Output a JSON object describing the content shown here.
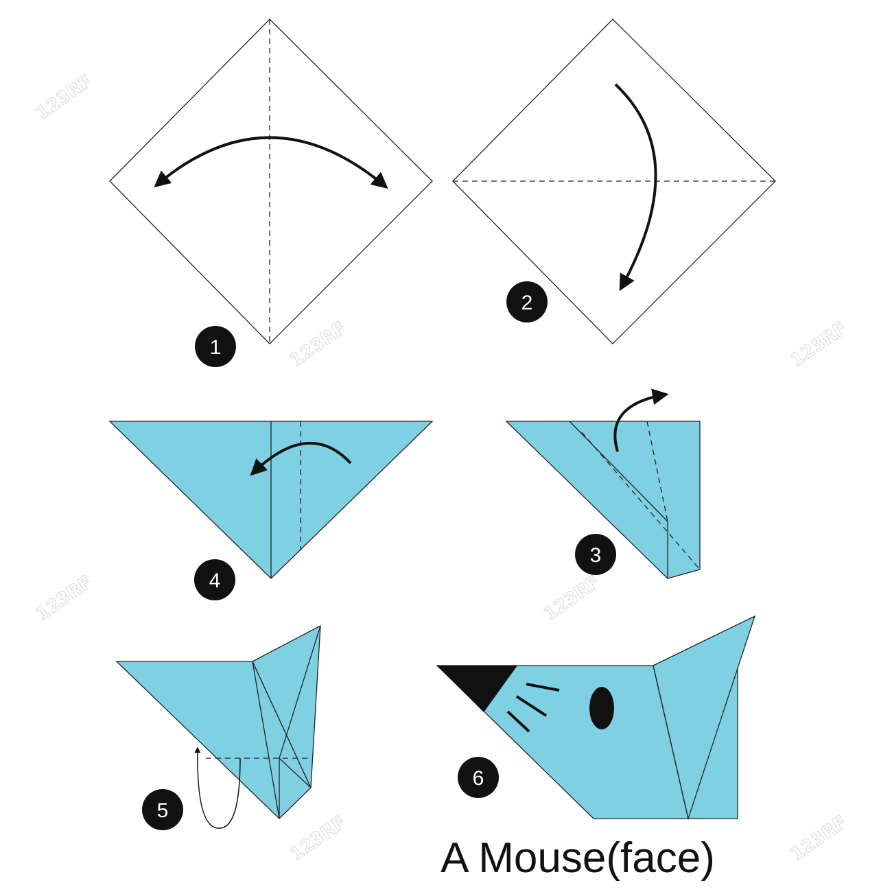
{
  "title": "A Mouse(face)",
  "steps": [
    {
      "number": "1"
    },
    {
      "number": "2"
    },
    {
      "number": "3"
    },
    {
      "number": "4"
    },
    {
      "number": "5"
    },
    {
      "number": "6"
    }
  ],
  "watermark": "123RF",
  "colors": {
    "paper": "#7fd0e2",
    "outline": "#222222",
    "badge": "#111111",
    "watermark": "#d9d9d9"
  }
}
